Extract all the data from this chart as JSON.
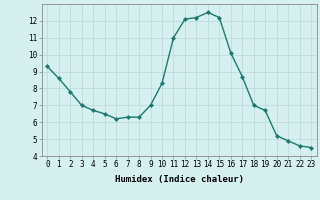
{
  "x": [
    0,
    1,
    2,
    3,
    4,
    5,
    6,
    7,
    8,
    9,
    10,
    11,
    12,
    13,
    14,
    15,
    16,
    17,
    18,
    19,
    20,
    21,
    22,
    23
  ],
  "y": [
    9.3,
    8.6,
    7.8,
    7.0,
    6.7,
    6.5,
    6.2,
    6.3,
    6.3,
    7.0,
    8.3,
    11.0,
    12.1,
    12.2,
    12.5,
    12.2,
    10.1,
    8.7,
    7.0,
    6.7,
    5.2,
    4.9,
    4.6,
    4.5
  ],
  "line_color": "#1a7a6e",
  "marker": "D",
  "marker_size": 2.0,
  "bg_color": "#d6f0f0",
  "grid_color": "#b8d8d8",
  "xlabel": "Humidex (Indice chaleur)",
  "ylim": [
    4,
    13
  ],
  "xlim": [
    -0.5,
    23.5
  ],
  "yticks": [
    4,
    5,
    6,
    7,
    8,
    9,
    10,
    11,
    12
  ],
  "xticks": [
    0,
    1,
    2,
    3,
    4,
    5,
    6,
    7,
    8,
    9,
    10,
    11,
    12,
    13,
    14,
    15,
    16,
    17,
    18,
    19,
    20,
    21,
    22,
    23
  ],
  "tick_fontsize": 5.5,
  "label_fontsize": 6.5,
  "linewidth": 1.0
}
